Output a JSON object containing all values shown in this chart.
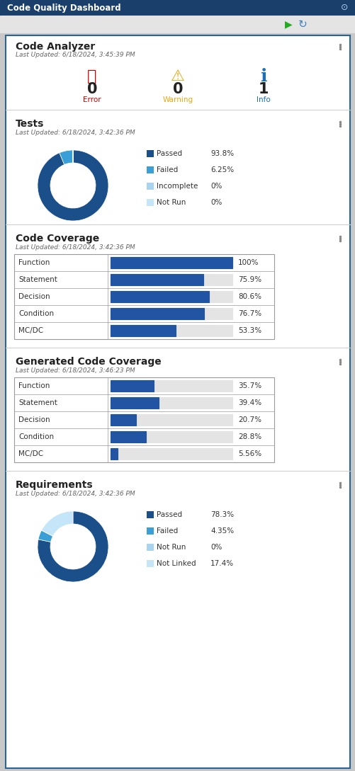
{
  "title": "Code Quality Dashboard",
  "title_bg": "#1b3f6b",
  "title_color": "#ffffff",
  "toolbar_bg": "#e4e4e4",
  "panel_bg": "#ffffff",
  "outer_bg": "#c8c8c8",
  "panel_border": "#2a6496",
  "code_analyzer": {
    "title": "Code Analyzer",
    "last_updated": "Last Updated: 6/18/2024, 3:45:39 PM",
    "error_count": "0",
    "warning_count": "0",
    "info_count": "1",
    "error_color": "#cc0000",
    "warning_color": "#e6a817",
    "info_color": "#1a6fba"
  },
  "tests": {
    "title": "Tests",
    "last_updated": "Last Updated: 6/18/2024, 3:42:36 PM",
    "labels": [
      "Passed",
      "Failed",
      "Incomplete",
      "Not Run"
    ],
    "values": [
      93.8,
      6.25,
      0.001,
      0.001
    ],
    "colors": [
      "#1a4f8a",
      "#3a9fd6",
      "#a8d4f0",
      "#c5e5f8"
    ],
    "legend_values": [
      "93.8%",
      "6.25%",
      "0%",
      "0%"
    ]
  },
  "code_coverage": {
    "title": "Code Coverage",
    "last_updated": "Last Updated: 6/18/2024, 3:42:36 PM",
    "metrics": [
      "Function",
      "Statement",
      "Decision",
      "Condition",
      "MC/DC"
    ],
    "values": [
      100.0,
      75.9,
      80.6,
      76.7,
      53.3
    ],
    "labels": [
      "100%",
      "75.9%",
      "80.6%",
      "76.7%",
      "53.3%"
    ],
    "bar_color": "#2155a3"
  },
  "gen_code_coverage": {
    "title": "Generated Code Coverage",
    "last_updated": "Last Updated: 6/18/2024, 3:46:23 PM",
    "metrics": [
      "Function",
      "Statement",
      "Decision",
      "Condition",
      "MC/DC"
    ],
    "values": [
      35.7,
      39.4,
      20.7,
      28.8,
      5.56
    ],
    "labels": [
      "35.7%",
      "39.4%",
      "20.7%",
      "28.8%",
      "5.56%"
    ],
    "bar_color": "#2155a3"
  },
  "requirements": {
    "title": "Requirements",
    "last_updated": "Last Updated: 6/18/2024, 3:42:36 PM",
    "labels": [
      "Passed",
      "Failed",
      "Not Run",
      "Not Linked"
    ],
    "values": [
      78.3,
      4.35,
      0.001,
      17.4
    ],
    "colors": [
      "#1a4f8a",
      "#3a9fd6",
      "#a8d4f0",
      "#c5e5f8"
    ],
    "legend_values": [
      "78.3%",
      "4.35%",
      "0%",
      "17.4%"
    ]
  }
}
